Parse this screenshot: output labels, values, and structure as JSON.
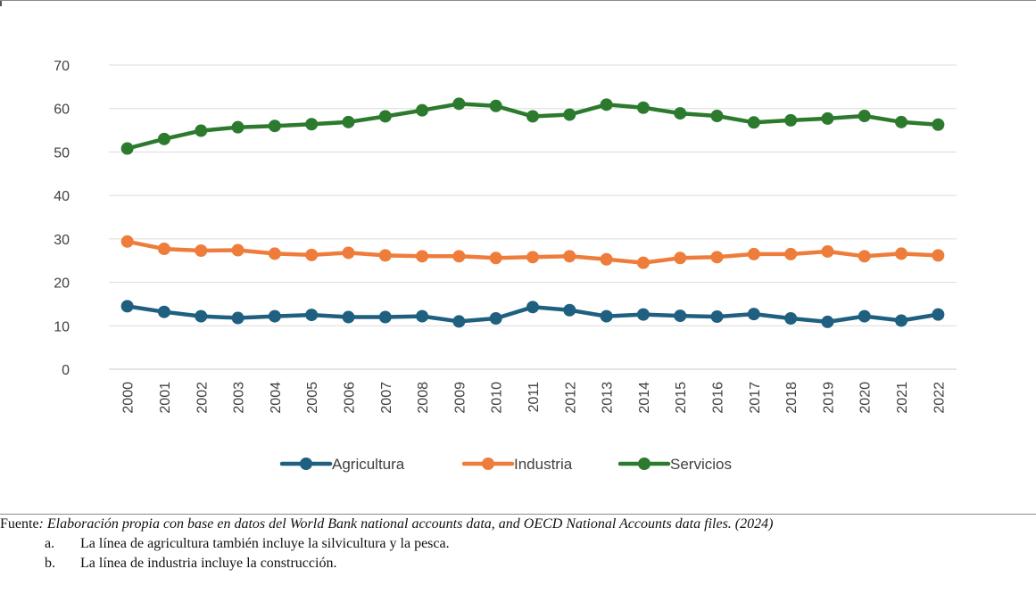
{
  "chart_data": {
    "type": "line",
    "categories": [
      "2000",
      "2001",
      "2002",
      "2003",
      "2004",
      "2005",
      "2006",
      "2007",
      "2008",
      "2009",
      "2010",
      "2011",
      "2012",
      "2013",
      "2014",
      "2015",
      "2016",
      "2017",
      "2018",
      "2019",
      "2020",
      "2021",
      "2022"
    ],
    "ylim": [
      0,
      70
    ],
    "yticks": [
      "0",
      "10",
      "20",
      "30",
      "40",
      "50",
      "60",
      "70"
    ],
    "grid": "horizontal",
    "legend_position": "bottom",
    "series": [
      {
        "name": "Agricultura",
        "color": "#1f5f7f",
        "values": [
          14.5,
          13.2,
          12.2,
          11.8,
          12.2,
          12.5,
          12.0,
          12.0,
          12.2,
          11.0,
          11.7,
          14.3,
          13.6,
          12.2,
          12.6,
          12.3,
          12.1,
          12.7,
          11.7,
          10.9,
          12.2,
          11.2,
          12.6
        ]
      },
      {
        "name": "Industria",
        "color": "#ee7d3b",
        "values": [
          29.4,
          27.7,
          27.3,
          27.4,
          26.6,
          26.3,
          26.8,
          26.2,
          26.0,
          26.0,
          25.6,
          25.8,
          26.0,
          25.3,
          24.5,
          25.6,
          25.8,
          26.5,
          26.5,
          27.1,
          26.0,
          26.6,
          26.2
        ]
      },
      {
        "name": "Servicios",
        "color": "#2c7a2e",
        "values": [
          50.8,
          53.0,
          54.9,
          55.7,
          56.0,
          56.4,
          56.9,
          58.2,
          59.6,
          61.1,
          60.6,
          58.2,
          58.6,
          60.9,
          60.2,
          58.9,
          58.3,
          56.8,
          57.3,
          57.7,
          58.3,
          56.9,
          56.3
        ]
      }
    ]
  },
  "footer": {
    "source_label": "Fuente",
    "source_text": ": Elaboración propia con base en datos del World Bank national accounts data, and OECD National Accounts data files. (2024)",
    "notes": [
      {
        "marker": "a.",
        "text": "La línea de agricultura también incluye la silvicultura y la pesca."
      },
      {
        "marker": "b.",
        "text": "La línea de industria incluye la construcción."
      }
    ]
  }
}
